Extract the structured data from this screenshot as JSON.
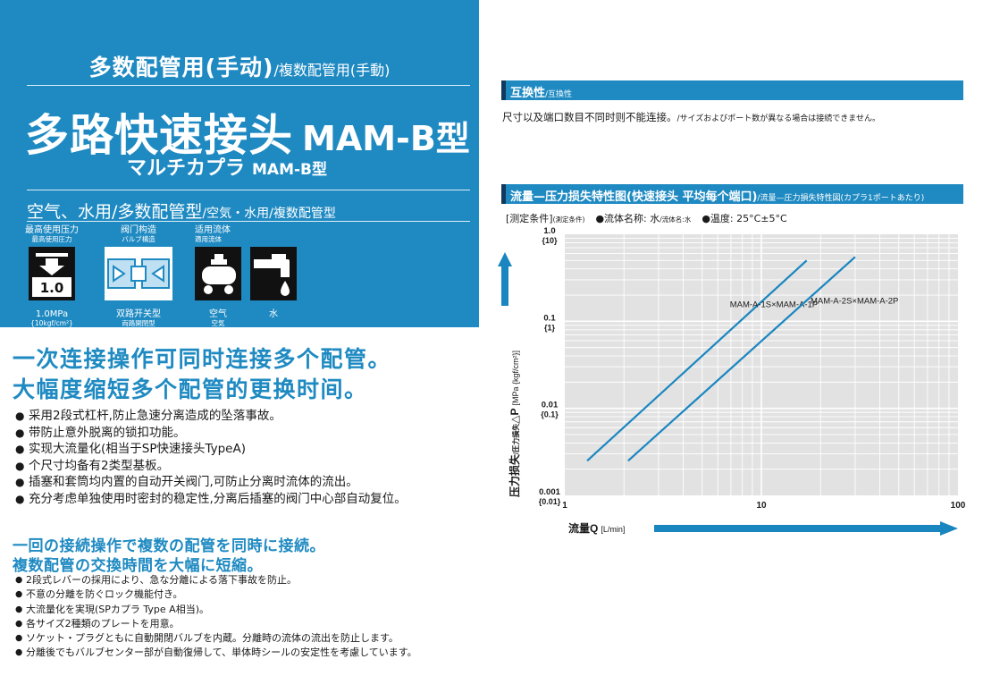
{
  "header": {
    "subtitle_cn": "多数配管用(手动)",
    "subtitle_jp": "/複数配管用(手動)",
    "title_cn": "多路快速接头",
    "title_model": "MAM-B型",
    "title_jp": "マルチカプラ",
    "title_jp_model": "MAM-B型",
    "use_cn": "空气、水用/多数配管型",
    "use_jp": "/空気・水用/複数配管型"
  },
  "specs": {
    "pressure": {
      "label_cn": "最高使用压力",
      "label_jp": "最高使用圧力",
      "icon": "pressure-icon",
      "icon_value": "1.0",
      "caption": "1.0MPa",
      "caption_sub": "{10kgf/cm²}"
    },
    "valve": {
      "label_cn": "阀门构造",
      "label_jp": "バルブ構造",
      "icon": "valve-icon",
      "caption": "双路开关型",
      "caption_sub": "両路開閉型"
    },
    "fluid": {
      "label_cn": "适用流体",
      "label_jp": "適用流体",
      "air_icon": "air-compressor-icon",
      "air_caption": "空气",
      "air_caption_sub": "空気",
      "water_icon": "water-faucet-icon",
      "water_caption": "水"
    }
  },
  "features_cn": {
    "heading_1": "一次连接操作可同时连接多个配管。",
    "heading_2": "大幅度缩短多个配管的更换时间。",
    "bullets": [
      "采用2段式杠杆,防止急速分离造成的坠落事故。",
      "带防止意外脱离的锁扣功能。",
      "实现大流量化(相当于SP快速接头TypeA)",
      "个尺寸均备有2类型基板。",
      "插塞和套筒均内置的自动开关阀门,可防止分离时流体的流出。",
      "充分考虑单独使用时密封的稳定性,分离后插塞的阀门中心部自动复位。"
    ]
  },
  "features_jp": {
    "heading_1": "一回の接続操作で複数の配管を同時に接続。",
    "heading_2": "複数配管の交換時間を大幅に短縮。",
    "bullets": [
      "2段式レバーの採用により、急な分離による落下事故を防止。",
      "不意の分離を防ぐロック機能付き。",
      "大流量化を実現(SPカプラ Type A相当)。",
      "各サイズ2種類のプレートを用意。",
      "ソケット・プラグともに自動開閉バルブを内蔵。分離時の流体の流出を防止します。",
      "分離後でもバルブセンター部が自動復帰して、単体時シールの安定性を考慮しています。"
    ]
  },
  "compat": {
    "title_cn": "互换性",
    "title_jp": "/互換性",
    "text_cn": "尺寸以及端口数目不同时则不能连接。",
    "text_jp": "/サイズおよびポート数が異なる場合は接続できません。"
  },
  "flow": {
    "title_cn": "流量—压力损失特性图(快速接头 平均每个端口)",
    "title_jp": "/流量—圧力損失特性図(カプラ1ポートあたり)",
    "cond_label": "[测定条件]",
    "cond_label_jp": "(測定条件)",
    "cond_fluid": "●流体名称: 水",
    "cond_fluid_jp": "/流体名:水",
    "cond_temp": "●温度: 25°C±5°C"
  },
  "chart_data": {
    "type": "line",
    "x_scale": "log",
    "y_scale": "log",
    "xlim": [
      1,
      100
    ],
    "ylim": [
      0.001,
      1.0
    ],
    "x_ticks": [
      "1",
      "10",
      "100"
    ],
    "y_ticks": [
      {
        "value": 1.0,
        "label": "1.0",
        "sub": "{10}"
      },
      {
        "value": 0.1,
        "label": "0.1",
        "sub": "{1}"
      },
      {
        "value": 0.01,
        "label": "0.01",
        "sub": "{0.1}"
      },
      {
        "value": 0.001,
        "label": "0.001",
        "sub": "{0.01}"
      }
    ],
    "xlabel": "流量Q",
    "xlabel_unit": "[L/min]",
    "ylabel": "压力损失",
    "ylabel_jp": "/圧力損失",
    "ylabel_sym": "△P",
    "ylabel_unit": "[MPa {kgf/cm²}]",
    "grid": true,
    "series": [
      {
        "name": "MAM-A-1S×MAM-A-1P",
        "x": [
          1.3,
          17
        ],
        "y": [
          0.0025,
          0.5
        ]
      },
      {
        "name": "MAM-A-2S×MAM-A-2P",
        "x": [
          2.1,
          30
        ],
        "y": [
          0.0025,
          0.55
        ]
      }
    ],
    "colors": {
      "line": "#1a86c0",
      "grid": "#ffffff",
      "plot_bg": "#e2e2e2",
      "arrow": "#1a86c0"
    }
  }
}
